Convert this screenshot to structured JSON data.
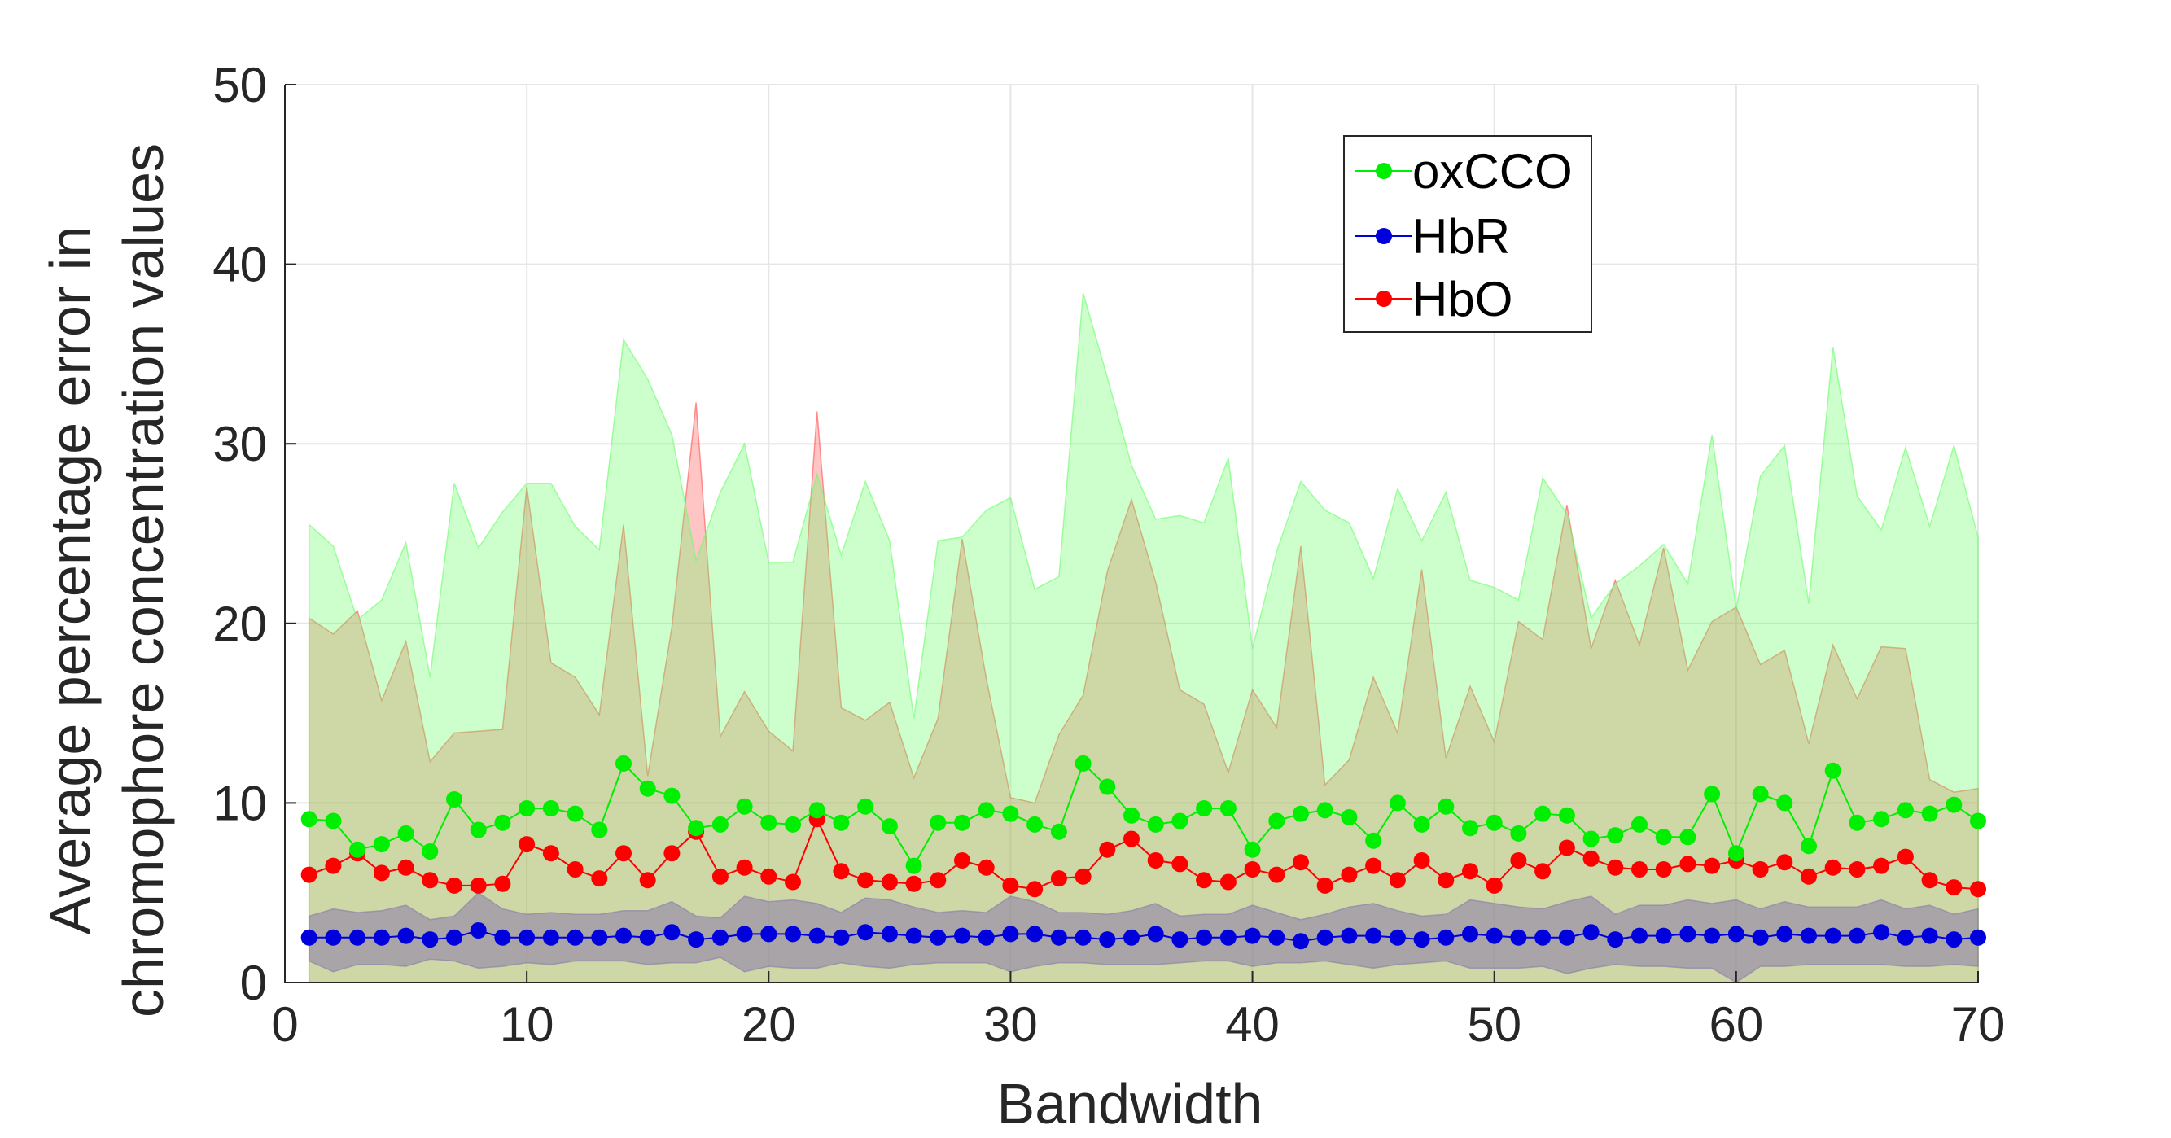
{
  "chart_data": {
    "type": "line",
    "xlabel": "Bandwidth",
    "ylabel_lines": [
      "Average percentage error in",
      "chromophore concentration values"
    ],
    "xlim": [
      0,
      70
    ],
    "ylim": [
      0,
      50
    ],
    "xticks": [
      "0",
      "10",
      "20",
      "30",
      "40",
      "50",
      "60",
      "70"
    ],
    "yticks": [
      "0",
      "10",
      "20",
      "30",
      "40",
      "50"
    ],
    "grid": true,
    "legend_position": "top-right",
    "x": [
      1,
      2,
      3,
      4,
      5,
      6,
      7,
      8,
      9,
      10,
      11,
      12,
      13,
      14,
      15,
      16,
      17,
      18,
      19,
      20,
      21,
      22,
      23,
      24,
      25,
      26,
      27,
      28,
      29,
      30,
      31,
      32,
      33,
      34,
      35,
      36,
      37,
      38,
      39,
      40,
      41,
      42,
      43,
      44,
      45,
      46,
      47,
      48,
      49,
      50,
      51,
      52,
      53,
      54,
      55,
      56,
      57,
      58,
      59,
      60,
      61,
      62,
      63,
      64,
      65,
      66,
      67,
      68,
      69,
      70
    ],
    "series": [
      {
        "name": "HbO",
        "color": "#ff0000",
        "band_fill": "#ff5050",
        "values": [
          6.0,
          6.5,
          7.2,
          6.1,
          6.4,
          5.7,
          5.4,
          5.4,
          5.5,
          7.7,
          7.2,
          6.3,
          5.8,
          7.2,
          5.7,
          7.2,
          8.4,
          5.9,
          6.4,
          5.9,
          5.6,
          9.1,
          6.2,
          5.7,
          5.6,
          5.5,
          5.7,
          6.8,
          6.4,
          5.4,
          5.2,
          5.8,
          5.9,
          7.4,
          8.0,
          6.8,
          6.6,
          5.7,
          5.6,
          6.3,
          6.0,
          6.7,
          5.4,
          6.0,
          6.5,
          5.7,
          6.8,
          5.7,
          6.2,
          5.4,
          6.8,
          6.2,
          7.5,
          6.9,
          6.4,
          6.3,
          6.3,
          6.6,
          6.5,
          6.8,
          6.3,
          6.7,
          5.9,
          6.4,
          6.3,
          6.5,
          7.0,
          5.7,
          5.3,
          5.2
        ],
        "upper": [
          20.3,
          19.4,
          20.7,
          15.7,
          19.0,
          12.3,
          13.9,
          14.0,
          14.1,
          27.6,
          17.8,
          17.0,
          14.9,
          25.5,
          11.5,
          19.8,
          32.3,
          13.7,
          16.2,
          14.0,
          12.9,
          31.8,
          15.3,
          14.6,
          15.6,
          11.4,
          14.7,
          24.7,
          16.9,
          10.3,
          10.0,
          13.8,
          16.0,
          22.9,
          26.9,
          22.3,
          16.3,
          15.5,
          11.7,
          16.3,
          14.2,
          24.3,
          11.0,
          12.4,
          17.0,
          13.9,
          23.0,
          12.5,
          16.5,
          13.4,
          20.1,
          19.1,
          26.6,
          18.6,
          22.4,
          18.8,
          24.2,
          17.4,
          20.1,
          20.9,
          17.7,
          18.5,
          13.3,
          18.8,
          15.8,
          18.7,
          18.6,
          11.3,
          10.6,
          10.8
        ],
        "lower": [
          0,
          0,
          0,
          0,
          0,
          0,
          0,
          0,
          0,
          0,
          0,
          0,
          0,
          0,
          0,
          0,
          0,
          0,
          0,
          0,
          0,
          0,
          0,
          0,
          0,
          0,
          0,
          0,
          0,
          0,
          0,
          0,
          0,
          0,
          0,
          0,
          0,
          0,
          0,
          0,
          0,
          0,
          0,
          0,
          0,
          0,
          0,
          0,
          0,
          0,
          0,
          0,
          0,
          0,
          0,
          0,
          0,
          0,
          0,
          0,
          0,
          0,
          0,
          0,
          0,
          0,
          0,
          0,
          0,
          0
        ]
      },
      {
        "name": "oxCCO",
        "color": "#00ee00",
        "band_fill": "#66ff66",
        "values": [
          9.1,
          9.0,
          7.4,
          7.7,
          8.3,
          7.3,
          10.2,
          8.5,
          8.9,
          9.7,
          9.7,
          9.4,
          8.5,
          12.2,
          10.8,
          10.4,
          8.6,
          8.8,
          9.8,
          8.9,
          8.8,
          9.6,
          8.9,
          9.8,
          8.7,
          6.5,
          8.9,
          8.9,
          9.6,
          9.4,
          8.8,
          8.4,
          12.2,
          10.9,
          9.3,
          8.8,
          9.0,
          9.7,
          9.7,
          7.4,
          9.0,
          9.4,
          9.6,
          9.2,
          7.9,
          10.0,
          8.8,
          9.8,
          8.6,
          8.9,
          8.3,
          9.4,
          9.3,
          8.0,
          8.2,
          8.8,
          8.1,
          8.1,
          10.5,
          7.2,
          10.5,
          10.0,
          7.6,
          11.8,
          8.9,
          9.1,
          9.6,
          9.4,
          9.9,
          9.0
        ],
        "upper": [
          25.5,
          24.3,
          20.2,
          21.3,
          24.5,
          17.0,
          27.8,
          24.2,
          26.2,
          27.8,
          27.8,
          25.4,
          24.1,
          35.8,
          33.6,
          30.5,
          23.5,
          27.3,
          30.0,
          23.4,
          23.4,
          28.3,
          23.8,
          27.9,
          24.6,
          14.7,
          24.6,
          24.8,
          26.3,
          27.0,
          21.9,
          22.6,
          38.4,
          33.7,
          28.8,
          25.8,
          26.0,
          25.6,
          29.2,
          18.6,
          24.0,
          27.9,
          26.3,
          25.6,
          22.5,
          27.5,
          24.6,
          27.3,
          22.4,
          22.0,
          21.3,
          28.1,
          26.1,
          20.3,
          22.2,
          23.2,
          24.4,
          22.2,
          30.5,
          20.8,
          28.2,
          29.9,
          21.1,
          35.4,
          27.1,
          25.2,
          29.8,
          25.4,
          29.9,
          24.8
        ],
        "lower": [
          0,
          0,
          0,
          0,
          0,
          0,
          0,
          0,
          0,
          0,
          0,
          0,
          0,
          0,
          0,
          0,
          0,
          0,
          0,
          0,
          0,
          0,
          0,
          0,
          0,
          0,
          0,
          0,
          0,
          0,
          0,
          0,
          0,
          0,
          0,
          0,
          0,
          0,
          0,
          0,
          0,
          0,
          0,
          0,
          0,
          0,
          0,
          0,
          0,
          0,
          0,
          0,
          0,
          0,
          0,
          0,
          0,
          0,
          0,
          0,
          0,
          0,
          0,
          0,
          0,
          0,
          0,
          0,
          0,
          0
        ]
      },
      {
        "name": "HbR",
        "color": "#0000dd",
        "band_fill": "#8c7aaa",
        "values": [
          2.5,
          2.5,
          2.5,
          2.5,
          2.6,
          2.4,
          2.5,
          2.9,
          2.5,
          2.5,
          2.5,
          2.5,
          2.5,
          2.6,
          2.5,
          2.8,
          2.4,
          2.5,
          2.7,
          2.7,
          2.7,
          2.6,
          2.5,
          2.8,
          2.7,
          2.6,
          2.5,
          2.6,
          2.5,
          2.7,
          2.7,
          2.5,
          2.5,
          2.4,
          2.5,
          2.7,
          2.4,
          2.5,
          2.5,
          2.6,
          2.5,
          2.3,
          2.5,
          2.6,
          2.6,
          2.5,
          2.4,
          2.5,
          2.7,
          2.6,
          2.5,
          2.5,
          2.5,
          2.8,
          2.4,
          2.6,
          2.6,
          2.7,
          2.6,
          2.7,
          2.5,
          2.7,
          2.6,
          2.6,
          2.6,
          2.8,
          2.5,
          2.6,
          2.4,
          2.5
        ],
        "upper": [
          3.7,
          4.1,
          3.9,
          4.0,
          4.3,
          3.5,
          3.7,
          5.0,
          4.1,
          3.8,
          3.9,
          3.8,
          3.8,
          4.0,
          4.0,
          4.5,
          3.7,
          3.6,
          4.8,
          4.5,
          4.6,
          4.4,
          3.9,
          4.7,
          4.6,
          4.2,
          3.9,
          4.0,
          3.9,
          4.8,
          4.5,
          3.9,
          3.9,
          3.8,
          4.0,
          4.4,
          3.7,
          3.8,
          3.8,
          4.3,
          3.9,
          3.5,
          3.8,
          4.2,
          4.4,
          4.0,
          3.7,
          3.8,
          4.6,
          4.4,
          4.2,
          4.1,
          4.5,
          4.8,
          3.8,
          4.3,
          4.3,
          4.6,
          4.4,
          4.6,
          4.1,
          4.5,
          4.2,
          4.2,
          4.2,
          4.6,
          4.1,
          4.3,
          3.8,
          4.1
        ],
        "lower": [
          1.2,
          0.6,
          1.0,
          1.0,
          0.9,
          1.3,
          1.2,
          0.8,
          0.9,
          1.1,
          1.0,
          1.2,
          1.2,
          1.2,
          1.0,
          1.1,
          1.1,
          1.4,
          0.6,
          0.9,
          0.8,
          0.8,
          1.1,
          0.9,
          0.8,
          1.0,
          1.1,
          1.1,
          1.1,
          0.6,
          0.9,
          1.1,
          1.1,
          1.0,
          1.0,
          1.0,
          1.1,
          1.2,
          1.2,
          0.9,
          1.1,
          1.1,
          1.2,
          1.0,
          0.8,
          1.0,
          1.1,
          1.2,
          0.8,
          0.8,
          0.8,
          0.9,
          0.5,
          0.8,
          1.0,
          0.9,
          0.9,
          0.8,
          0.8,
          0.0,
          0.9,
          0.9,
          1.0,
          1.0,
          1.0,
          1.0,
          0.9,
          0.9,
          1.0,
          0.9
        ]
      }
    ],
    "legend_order": [
      "oxCCO",
      "HbR",
      "HbO"
    ]
  }
}
